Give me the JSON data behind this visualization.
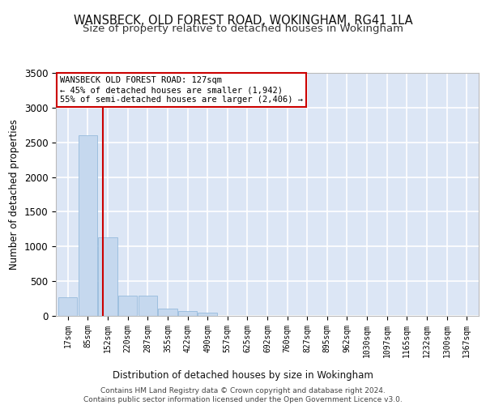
{
  "title1": "WANSBECK, OLD FOREST ROAD, WOKINGHAM, RG41 1LA",
  "title2": "Size of property relative to detached houses in Wokingham",
  "xlabel": "Distribution of detached houses by size in Wokingham",
  "ylabel": "Number of detached properties",
  "bar_color": "#c5d8ee",
  "bar_edge_color": "#8ab4d8",
  "background_color": "#dce6f5",
  "grid_color": "#ffffff",
  "tick_labels": [
    "17sqm",
    "85sqm",
    "152sqm",
    "220sqm",
    "287sqm",
    "355sqm",
    "422sqm",
    "490sqm",
    "557sqm",
    "625sqm",
    "692sqm",
    "760sqm",
    "827sqm",
    "895sqm",
    "962sqm",
    "1030sqm",
    "1097sqm",
    "1165sqm",
    "1232sqm",
    "1300sqm",
    "1367sqm"
  ],
  "bar_values": [
    270,
    2600,
    1130,
    290,
    290,
    100,
    65,
    45,
    0,
    0,
    0,
    0,
    0,
    0,
    0,
    0,
    0,
    0,
    0,
    0,
    0
  ],
  "ylim": [
    0,
    3500
  ],
  "yticks": [
    0,
    500,
    1000,
    1500,
    2000,
    2500,
    3000,
    3500
  ],
  "annotation_text": "WANSBECK OLD FOREST ROAD: 127sqm\n← 45% of detached houses are smaller (1,942)\n55% of semi-detached houses are larger (2,406) →",
  "vline_x": 1.75,
  "annotation_box_color": "#ffffff",
  "annotation_box_edge": "#cc0000",
  "footnote": "Contains HM Land Registry data © Crown copyright and database right 2024.\nContains public sector information licensed under the Open Government Licence v3.0.",
  "title1_fontsize": 10.5,
  "title2_fontsize": 9.5,
  "xlabel_fontsize": 8.5,
  "ylabel_fontsize": 8.5,
  "tick_fontsize": 7,
  "annotation_fontsize": 7.5,
  "footnote_fontsize": 6.5
}
